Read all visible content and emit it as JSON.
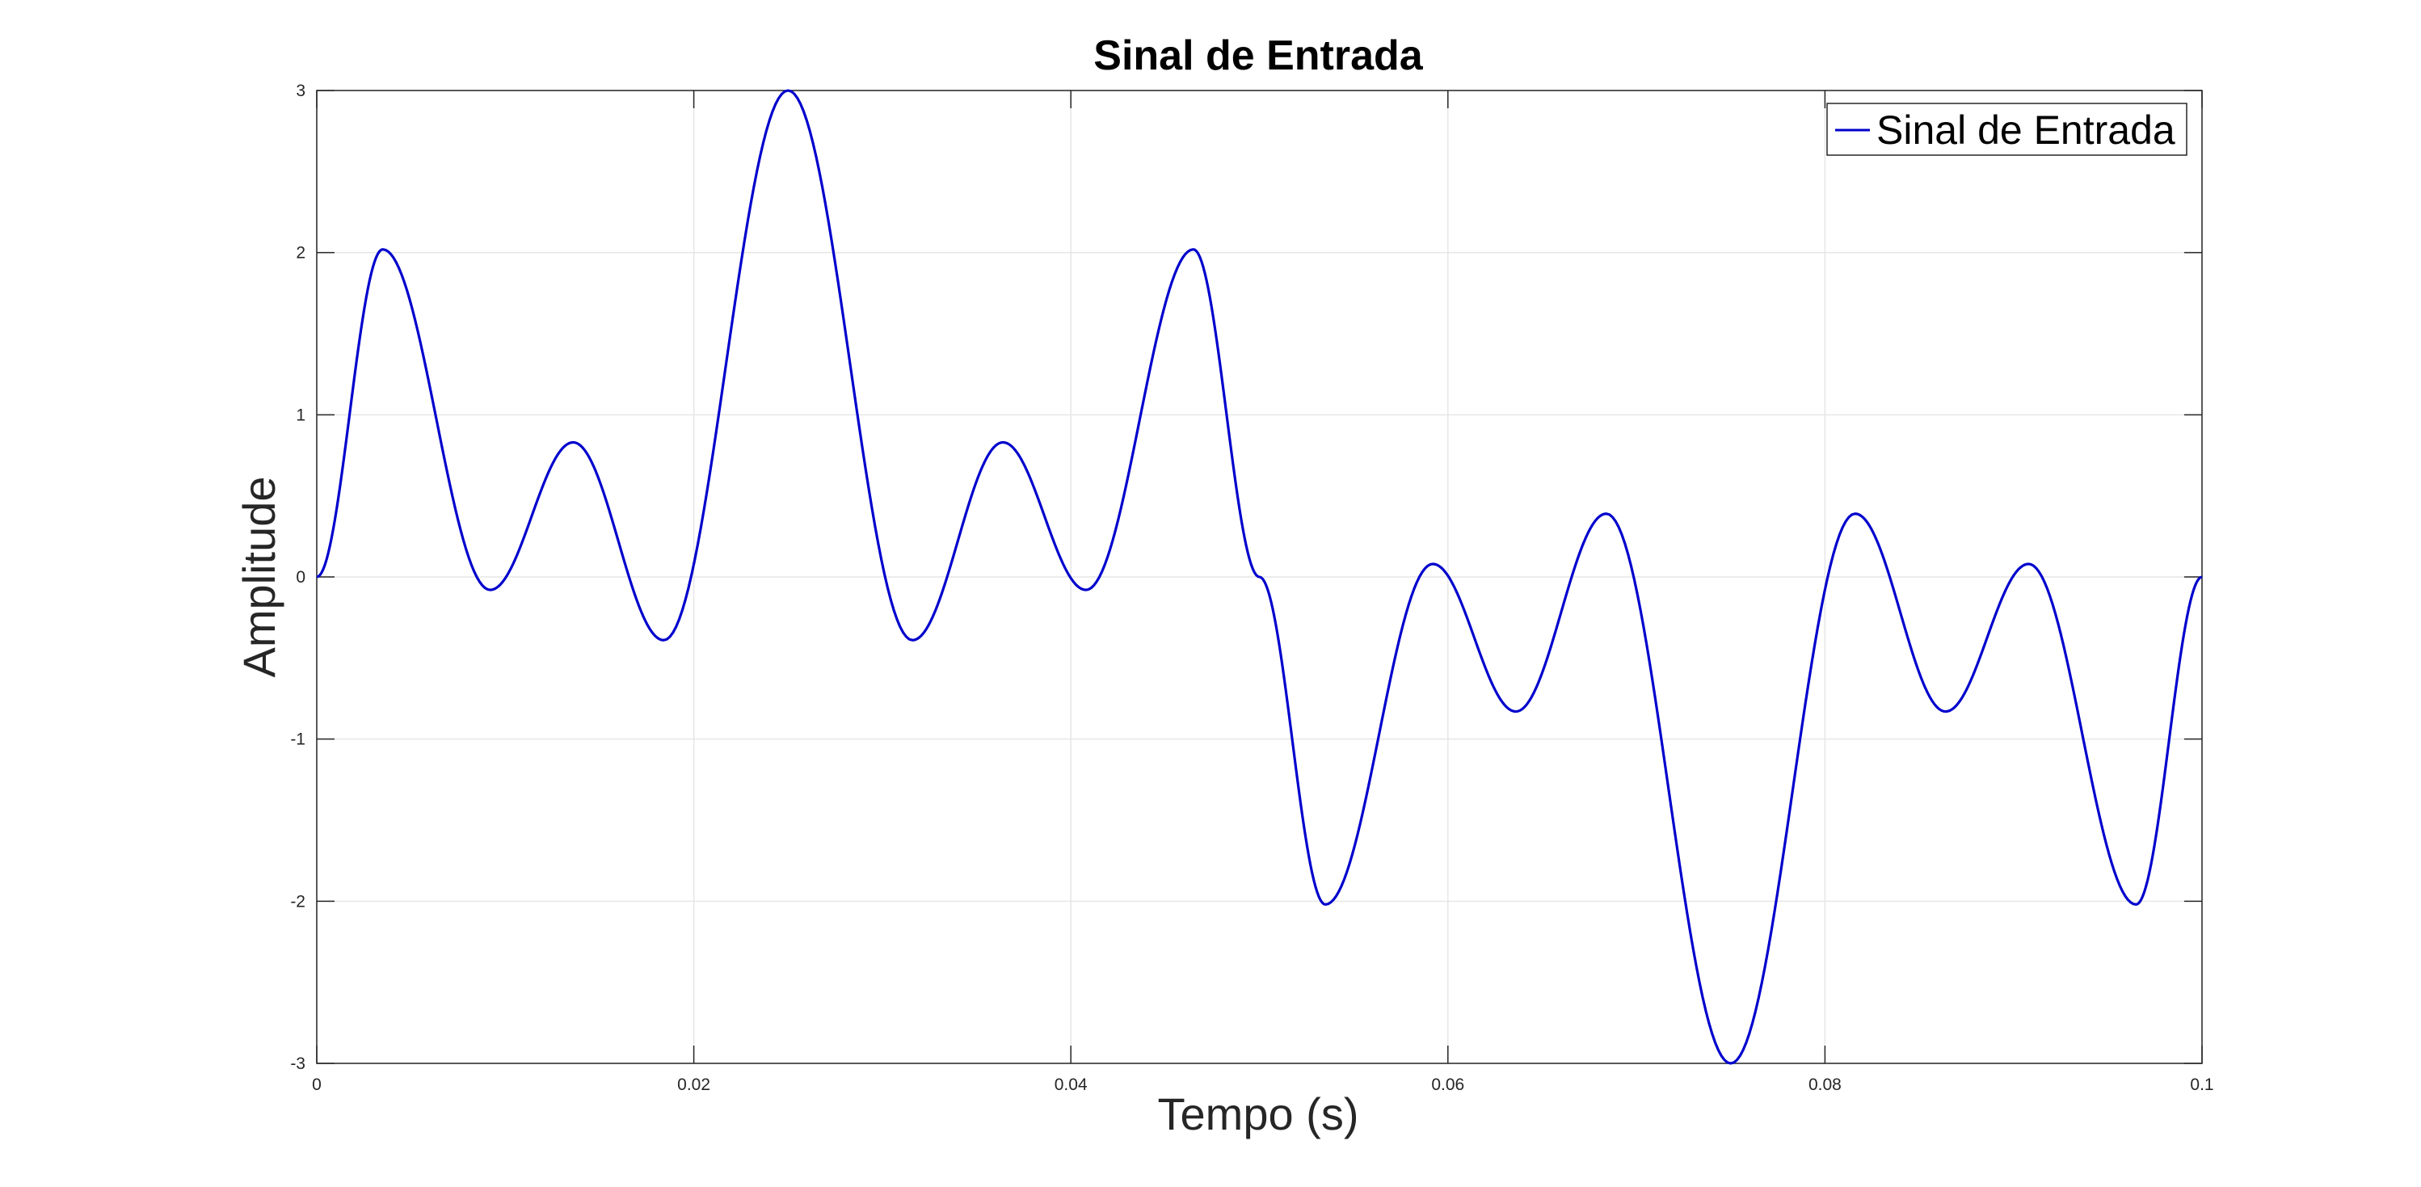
{
  "chart_data": {
    "type": "line",
    "title": "Sinal de Entrada",
    "xlabel": "Tempo (s)",
    "ylabel": "Amplitude",
    "xlim": [
      0,
      0.1
    ],
    "ylim": [
      -3,
      3
    ],
    "grid": true,
    "legend_position": "top-right",
    "x_ticks": [
      0,
      0.02,
      0.04,
      0.06,
      0.08,
      0.1
    ],
    "x_tick_labels": [
      "0",
      "0.02",
      "0.04",
      "0.06",
      "0.08",
      "0.1"
    ],
    "y_ticks": [
      -3,
      -2,
      -1,
      0,
      1,
      2,
      3
    ],
    "y_tick_labels": [
      "-3",
      "-2",
      "-1",
      "0",
      "1",
      "2",
      "3"
    ],
    "series": [
      {
        "name": "Sinal de Entrada",
        "color": "#0000cd",
        "x": [
          0,
          0.0035,
          0.0092,
          0.0136,
          0.0184,
          0.025,
          0.0316,
          0.0364,
          0.0408,
          0.0465,
          0.05,
          0.0535,
          0.0592,
          0.0636,
          0.0684,
          0.075,
          0.0816,
          0.0864,
          0.0908,
          0.0965,
          0.1
        ],
        "y": [
          0,
          2.02,
          -0.08,
          0.83,
          -0.39,
          3.0,
          -0.39,
          0.83,
          -0.08,
          2.02,
          0,
          -2.02,
          0.08,
          -0.83,
          0.39,
          -3.0,
          0.39,
          -0.83,
          0.08,
          -2.02,
          0
        ]
      }
    ]
  }
}
